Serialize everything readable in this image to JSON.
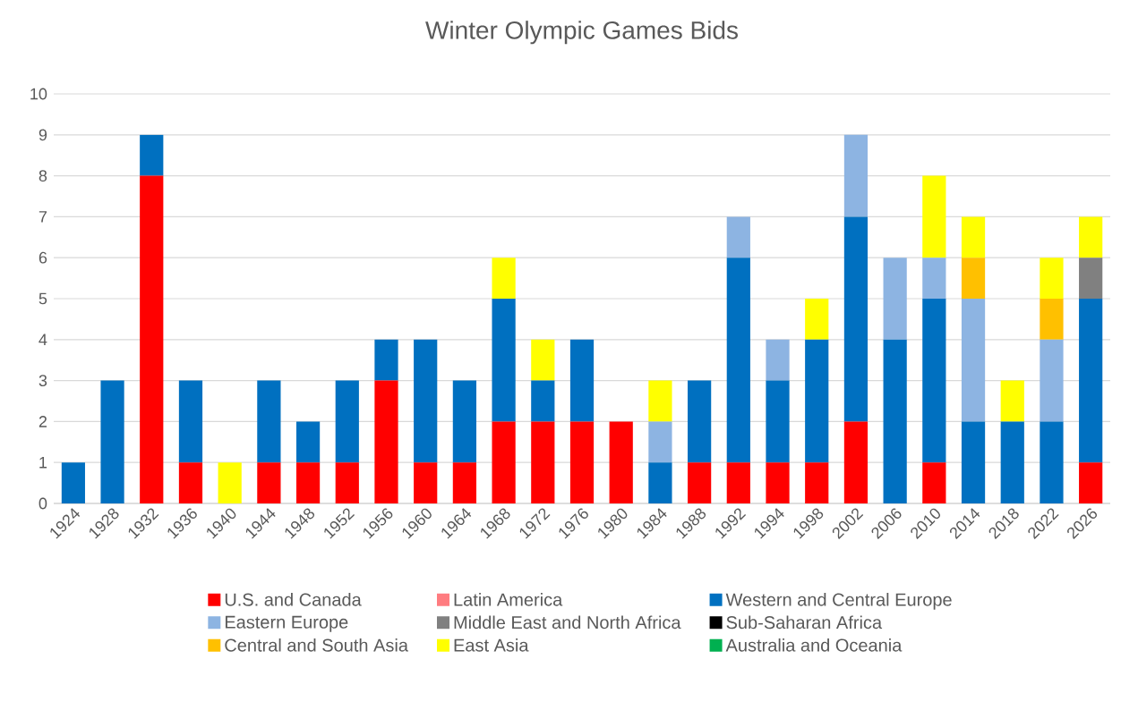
{
  "chart_data": {
    "type": "bar",
    "title": "Winter Olympic Games Bids",
    "stacked": true,
    "grid": "y",
    "legend": "bottom",
    "categories": [
      "1924",
      "1928",
      "1932",
      "1936",
      "1940",
      "1944",
      "1948",
      "1952",
      "1956",
      "1960",
      "1964",
      "1968",
      "1972",
      "1976",
      "1980",
      "1984",
      "1988",
      "1992",
      "1994",
      "1998",
      "2002",
      "2006",
      "2010",
      "2014",
      "2018",
      "2022",
      "2026"
    ],
    "ylim": [
      0,
      10
    ],
    "yticks": [
      0,
      1,
      2,
      3,
      4,
      5,
      6,
      7,
      8,
      9,
      10
    ],
    "series": [
      {
        "name": "U.S. and Canada",
        "color": "#ff0000",
        "values": [
          0,
          0,
          8,
          1,
          0,
          1,
          1,
          1,
          3,
          1,
          1,
          2,
          2,
          2,
          2,
          0,
          1,
          1,
          1,
          1,
          2,
          0,
          1,
          0,
          0,
          0,
          1
        ]
      },
      {
        "name": "Latin America",
        "color": "#ff7c80",
        "values": [
          0,
          0,
          0,
          0,
          0,
          0,
          0,
          0,
          0,
          0,
          0,
          0,
          0,
          0,
          0,
          0,
          0,
          0,
          0,
          0,
          0,
          0,
          0,
          0,
          0,
          0,
          0
        ]
      },
      {
        "name": "Western and Central Europe",
        "color": "#0070c0",
        "values": [
          1,
          3,
          1,
          2,
          0,
          2,
          1,
          2,
          1,
          3,
          2,
          3,
          1,
          2,
          0,
          1,
          2,
          5,
          2,
          3,
          5,
          4,
          4,
          2,
          2,
          2,
          4
        ]
      },
      {
        "name": "Eastern Europe",
        "color": "#8db4e2",
        "values": [
          0,
          0,
          0,
          0,
          0,
          0,
          0,
          0,
          0,
          0,
          0,
          0,
          0,
          0,
          0,
          1,
          0,
          1,
          1,
          0,
          2,
          2,
          1,
          3,
          0,
          2,
          0
        ]
      },
      {
        "name": "Middle East and North Africa",
        "color": "#808080",
        "values": [
          0,
          0,
          0,
          0,
          0,
          0,
          0,
          0,
          0,
          0,
          0,
          0,
          0,
          0,
          0,
          0,
          0,
          0,
          0,
          0,
          0,
          0,
          0,
          0,
          0,
          0,
          1
        ]
      },
      {
        "name": "Sub-Saharan Africa",
        "color": "#000000",
        "values": [
          0,
          0,
          0,
          0,
          0,
          0,
          0,
          0,
          0,
          0,
          0,
          0,
          0,
          0,
          0,
          0,
          0,
          0,
          0,
          0,
          0,
          0,
          0,
          0,
          0,
          0,
          0
        ]
      },
      {
        "name": "Central and South Asia",
        "color": "#ffc000",
        "values": [
          0,
          0,
          0,
          0,
          0,
          0,
          0,
          0,
          0,
          0,
          0,
          0,
          0,
          0,
          0,
          0,
          0,
          0,
          0,
          0,
          0,
          0,
          0,
          1,
          0,
          1,
          0
        ]
      },
      {
        "name": "East Asia",
        "color": "#ffff00",
        "values": [
          0,
          0,
          0,
          0,
          1,
          0,
          0,
          0,
          0,
          0,
          0,
          1,
          1,
          0,
          0,
          1,
          0,
          0,
          0,
          1,
          0,
          0,
          2,
          1,
          1,
          1,
          1
        ]
      },
      {
        "name": "Australia and Oceania",
        "color": "#00b050",
        "values": [
          0,
          0,
          0,
          0,
          0,
          0,
          0,
          0,
          0,
          0,
          0,
          0,
          0,
          0,
          0,
          0,
          0,
          0,
          0,
          0,
          0,
          0,
          0,
          0,
          0,
          0,
          0
        ]
      }
    ]
  }
}
